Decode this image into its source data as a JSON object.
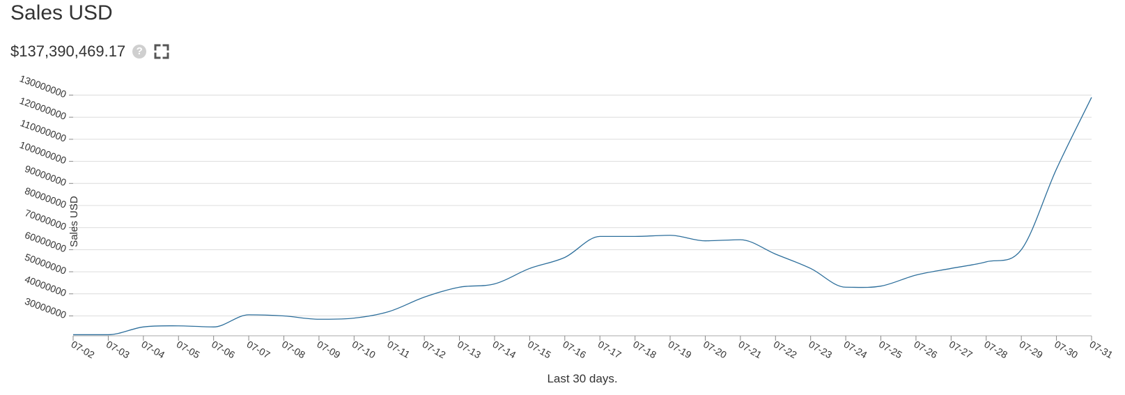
{
  "header": {
    "title": "Sales USD",
    "total_value": "$137,390,469.17",
    "help_icon": "question-circle-icon",
    "help_glyph": "?",
    "fullscreen_icon": "expand-icon"
  },
  "colors": {
    "line": "#2c6e9b",
    "grid": "#dcdcdc",
    "text": "#333333",
    "icon_muted": "#cfcfcf"
  },
  "chart_data": {
    "type": "line",
    "title": "",
    "xlabel": "Last 30 days.",
    "ylabel": "Sales USD",
    "grid": true,
    "categories": [
      "07-02",
      "07-03",
      "07-04",
      "07-05",
      "07-06",
      "07-07",
      "07-08",
      "07-09",
      "07-10",
      "07-11",
      "07-12",
      "07-13",
      "07-14",
      "07-15",
      "07-16",
      "07-17",
      "07-18",
      "07-19",
      "07-20",
      "07-21",
      "07-22",
      "07-23",
      "07-24",
      "07-25",
      "07-26",
      "07-27",
      "07-28",
      "07-29",
      "07-30",
      "07-31"
    ],
    "yticks": [
      30000000,
      40000000,
      50000000,
      60000000,
      70000000,
      80000000,
      90000000,
      100000000,
      110000000,
      120000000,
      130000000
    ],
    "ytick_labels": [
      "30000000",
      "40000000",
      "50000000",
      "60000000",
      "70000000",
      "80000000",
      "90000000",
      "100000000",
      "110000000",
      "120000000",
      "130000000"
    ],
    "ylim": [
      21000000,
      133000000
    ],
    "series": [
      {
        "values": [
          21500000,
          21500000,
          25000000,
          25500000,
          25000000,
          30500000,
          30000000,
          28500000,
          29000000,
          32000000,
          38500000,
          43000000,
          44500000,
          51500000,
          56500000,
          66000000,
          66000000,
          66500000,
          64000000,
          64500000,
          58000000,
          51500000,
          43000000,
          43500000,
          48500000,
          51500000,
          54500000,
          60000000,
          96500000,
          129000000
        ]
      }
    ]
  }
}
